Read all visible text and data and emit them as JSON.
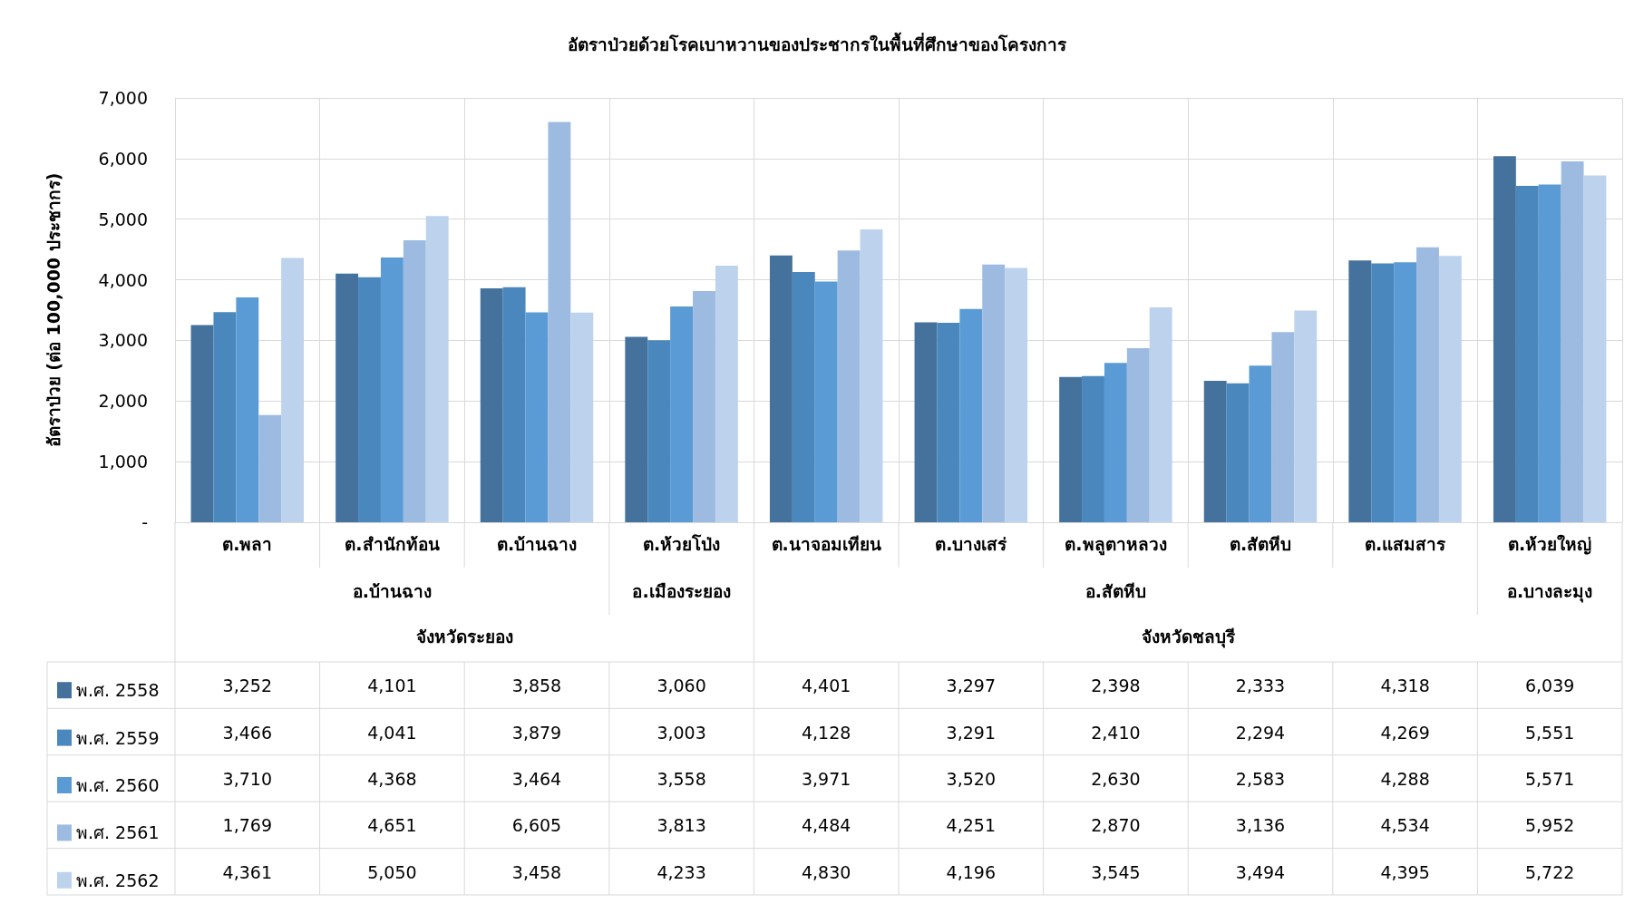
{
  "chart_data": {
    "type": "bar",
    "title": "อัตราป่วยด้วยโรคเบาหวานของประชากรในพื้นที่ศึกษาของโครงการ",
    "ylabel": "อัตราป่วย (ต่อ 100,000 ประชากร)",
    "categories": [
      "ต.พลา",
      "ต.สำนักท้อน",
      "ต.บ้านฉาง",
      "ต.ห้วยโป่ง",
      "ต.นาจอมเทียน",
      "ต.บางเสร่",
      "ต.พลูตาหลวง",
      "ต.สัตหีบ",
      "ต.แสมสาร",
      "ต.ห้วยใหญ่"
    ],
    "series": [
      {
        "name": "พ.ศ. 2558",
        "color": "#44729d",
        "values": [
          3252,
          4101,
          3858,
          3060,
          4401,
          3297,
          2398,
          2333,
          4318,
          6039
        ],
        "value_labels": [
          "3,252",
          "4,101",
          "3,858",
          "3,060",
          "4,401",
          "3,297",
          "2,398",
          "2,333",
          "4,318",
          "6,039"
        ]
      },
      {
        "name": "พ.ศ. 2559",
        "color": "#4a87bd",
        "values": [
          3466,
          4041,
          3879,
          3003,
          4128,
          3291,
          2410,
          2294,
          4269,
          5551
        ],
        "value_labels": [
          "3,466",
          "4,041",
          "3,879",
          "3,003",
          "4,128",
          "3,291",
          "2,410",
          "2,294",
          "4,269",
          "5,551"
        ]
      },
      {
        "name": "พ.ศ. 2560",
        "color": "#5b9bd5",
        "values": [
          3710,
          4368,
          3464,
          3558,
          3971,
          3520,
          2630,
          2583,
          4288,
          5571
        ],
        "value_labels": [
          "3,710",
          "4,368",
          "3,464",
          "3,558",
          "3,971",
          "3,520",
          "2,630",
          "2,583",
          "4,288",
          "5,571"
        ]
      },
      {
        "name": "พ.ศ. 2561",
        "color": "#9dbbe1",
        "values": [
          1769,
          4651,
          6605,
          3813,
          4484,
          4251,
          2870,
          3136,
          4534,
          5952
        ],
        "value_labels": [
          "1,769",
          "4,651",
          "6,605",
          "3,813",
          "4,484",
          "4,251",
          "2,870",
          "3,136",
          "4,534",
          "5,952"
        ]
      },
      {
        "name": "พ.ศ. 2562",
        "color": "#bdd2ec",
        "values": [
          4361,
          5050,
          3458,
          4233,
          4830,
          4196,
          3545,
          3494,
          4395,
          5722
        ],
        "value_labels": [
          "4,361",
          "5,050",
          "3,458",
          "4,233",
          "4,830",
          "4,196",
          "3,545",
          "3,494",
          "4,395",
          "5,722"
        ]
      }
    ],
    "ylim": [
      0,
      7000
    ],
    "yticks": [
      {
        "value": 0,
        "label": "-"
      },
      {
        "value": 1000,
        "label": "1,000"
      },
      {
        "value": 2000,
        "label": "2,000"
      },
      {
        "value": 3000,
        "label": "3,000"
      },
      {
        "value": 4000,
        "label": "4,000"
      },
      {
        "value": 5000,
        "label": "5,000"
      },
      {
        "value": 6000,
        "label": "6,000"
      },
      {
        "value": 7000,
        "label": "7,000"
      }
    ],
    "annotations": [
      "อ.บ้านฉาง",
      "อ.เมืองระยอง",
      "อ.สัตหีบ",
      "อ.บางละมุง",
      "จังหวัดระยอง",
      "จังหวัดชลบุรี"
    ],
    "grid": true,
    "legend": "bottom left"
  }
}
